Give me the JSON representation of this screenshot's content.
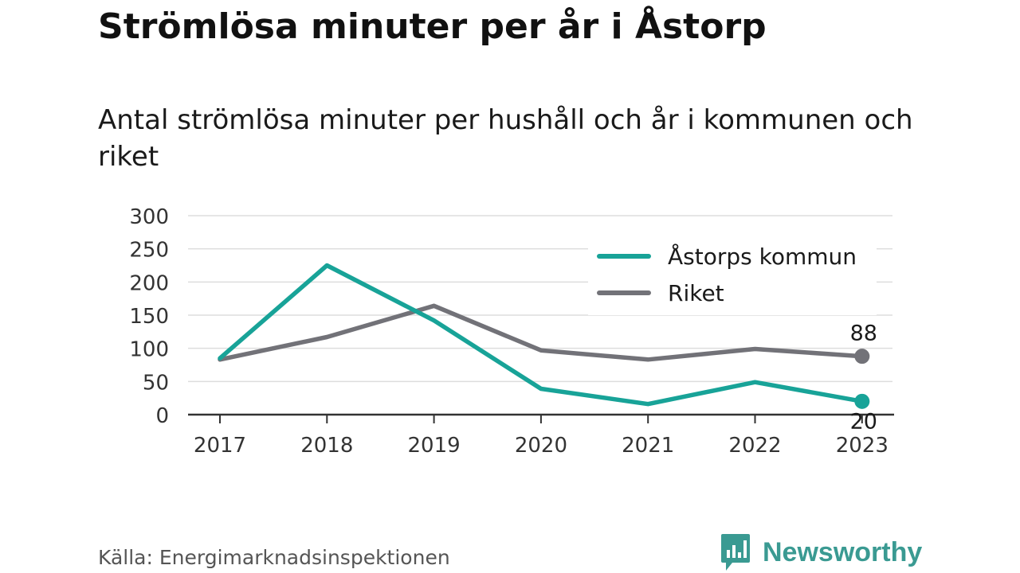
{
  "header": {
    "title": "Strömlösa minuter per år i Åstorp",
    "subtitle": "Antal strömlösa minuter per hushåll och år i kommunen och riket"
  },
  "footer": {
    "source": "Källa: Energimarknadsinspektionen",
    "brand": "Newsworthy",
    "brand_icon": "bar-chart-speech-bubble-icon"
  },
  "colors": {
    "astorp": "#18a398",
    "riket": "#727278",
    "grid": "#dddddd",
    "axis": "#333333",
    "brand": "#3a9a92"
  },
  "chart_data": {
    "type": "line",
    "x": [
      "2017",
      "2018",
      "2019",
      "2020",
      "2021",
      "2022",
      "2023"
    ],
    "series": [
      {
        "name": "Åstorps kommun",
        "values": [
          85,
          225,
          142,
          39,
          16,
          49,
          20
        ],
        "color": "#18a398",
        "end_label": "20"
      },
      {
        "name": "Riket",
        "values": [
          83,
          117,
          164,
          97,
          83,
          99,
          88
        ],
        "color": "#727278",
        "end_label": "88"
      }
    ],
    "yticks": [
      "300",
      "250",
      "200",
      "150",
      "100",
      "50",
      "0"
    ],
    "ylim": [
      0,
      300
    ],
    "grid": true,
    "legend_position": "top-right"
  }
}
